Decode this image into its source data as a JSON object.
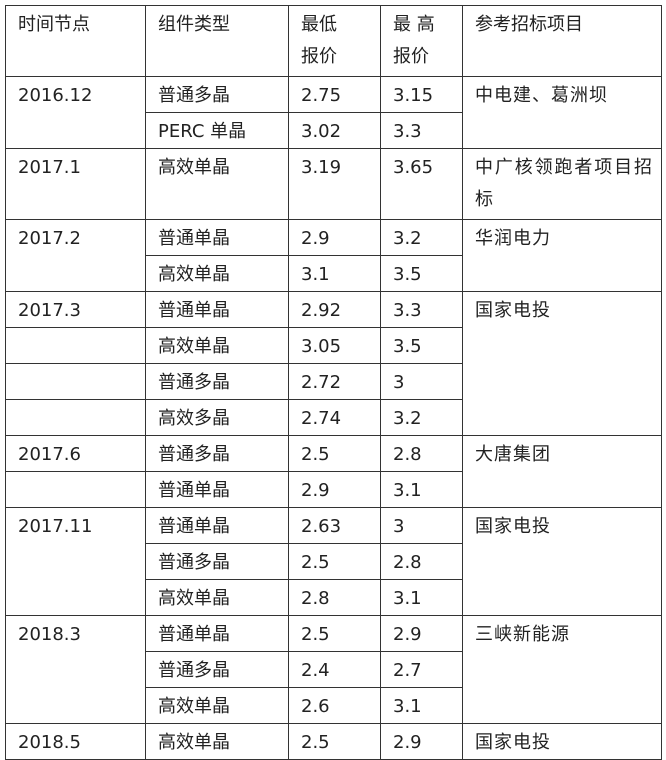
{
  "header": [
    "时间节点",
    "组件类型",
    "最低\n报价",
    "最 高\n报价",
    "参考招标项目"
  ],
  "groups": [
    {
      "date": "2016.12",
      "project": "中电建、葛洲坝",
      "rows": [
        [
          "普通多晶",
          2.75,
          3.15
        ],
        [
          "PERC 单晶",
          3.02,
          3.3
        ]
      ]
    },
    {
      "date": "2017.1",
      "project": "中广核领跑者项目招标",
      "rows": [
        [
          "高效单晶",
          3.19,
          3.65
        ]
      ]
    },
    {
      "date": "2017.2",
      "project": "华润电力",
      "rows": [
        [
          "普通单晶",
          2.9,
          3.2
        ],
        [
          "高效单晶",
          3.1,
          3.5
        ]
      ]
    },
    {
      "date": "2017.3",
      "project": "国家电投",
      "rows": [
        [
          "普通单晶",
          2.92,
          3.3
        ],
        [
          "高效单晶",
          3.05,
          3.5
        ],
        [
          "普通多晶",
          2.72,
          3
        ],
        [
          "高效多晶",
          2.74,
          3.2
        ]
      ]
    },
    {
      "date": "2017.6",
      "project": "大唐集团",
      "rows": [
        [
          "普通多晶",
          2.5,
          2.8
        ],
        [
          "普通单晶",
          2.9,
          3.1
        ]
      ]
    },
    {
      "date": "2017.11",
      "project": "国家电投",
      "rows": [
        [
          "普通单晶",
          2.63,
          3
        ],
        [
          "普通多晶",
          2.5,
          2.8
        ],
        [
          "高效单晶",
          2.8,
          3.1
        ]
      ]
    },
    {
      "date": "2018.3",
      "project": "三峡新能源",
      "rows": [
        [
          "普通单晶",
          2.5,
          2.9
        ],
        [
          "普通多晶",
          2.4,
          2.7
        ],
        [
          "高效单晶",
          2.6,
          3.1
        ]
      ]
    },
    {
      "date": "2018.5",
      "project": "国家电投",
      "rows": [
        [
          "高效单晶",
          2.5,
          2.9
        ]
      ]
    }
  ]
}
